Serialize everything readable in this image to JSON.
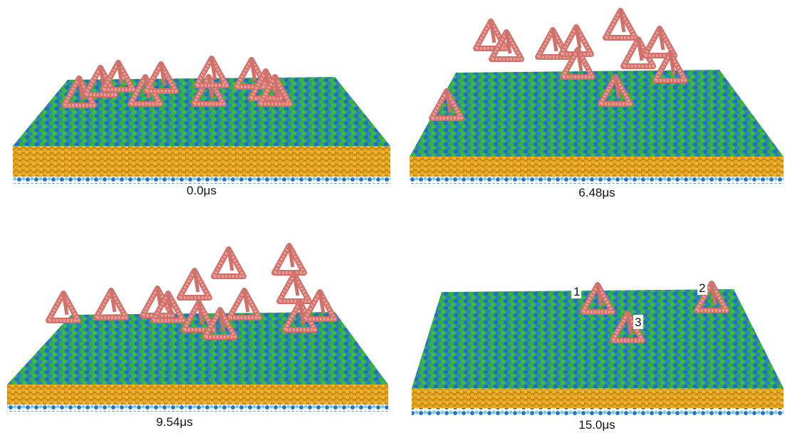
{
  "panels": [
    {
      "label": "0.0μs"
    },
    {
      "label": "6.48μs"
    },
    {
      "label": "9.54μs"
    },
    {
      "label": "15.0μs",
      "markers": [
        "1",
        "2",
        "3"
      ]
    }
  ]
}
